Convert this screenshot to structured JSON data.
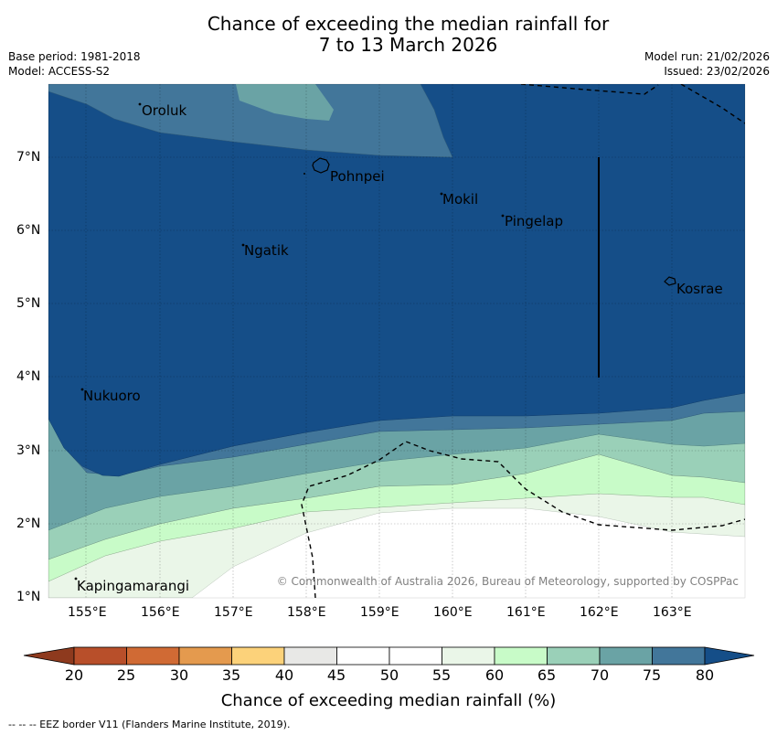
{
  "title": {
    "line1": "Chance of exceeding the median rainfall for",
    "line2": "7 to 13 March 2026"
  },
  "meta": {
    "base_period": "Base period: 1981-2018",
    "model": "Model: ACCESS-S2",
    "model_run": "Model run: 21/02/2026",
    "issued": "Issued: 23/02/2026"
  },
  "axes": {
    "lat_ticks": [
      "7°N",
      "6°N",
      "5°N",
      "4°N",
      "3°N",
      "2°N",
      "1°N"
    ],
    "lon_ticks": [
      "155°E",
      "156°E",
      "157°E",
      "158°E",
      "159°E",
      "160°E",
      "161°E",
      "162°E",
      "163°E"
    ]
  },
  "places": {
    "oroluk": "Oroluk",
    "pohnpei": "Pohnpei",
    "mokil": "Mokil",
    "pingelap": "Pingelap",
    "ngatik": "Ngatik",
    "kosrae": "Kosrae",
    "nukuoro": "Nukuoro",
    "kapingamarangi": "Kapingamarangi"
  },
  "copyright": "© Commonwealth of Australia 2026, Bureau of Meteorology, supported by COSPPac",
  "colorbar": {
    "ticks": [
      "20",
      "25",
      "30",
      "35",
      "40",
      "45",
      "50",
      "55",
      "60",
      "65",
      "70",
      "75",
      "80"
    ],
    "colors": [
      "#8e3a1e",
      "#b84f2a",
      "#d06a34",
      "#e49a4e",
      "#fcd27a",
      "#e8e8e6",
      "#ffffff",
      "#ffffff",
      "#eaf6e8",
      "#c8fbc8",
      "#9ad0b8",
      "#6aa3a5",
      "#42769a",
      "#154e88"
    ],
    "label": "Chance of exceeding median rainfall (%)"
  },
  "footnote": "--  --  -- EEZ border V11 (Flanders Marine Institute, 2019)."
}
